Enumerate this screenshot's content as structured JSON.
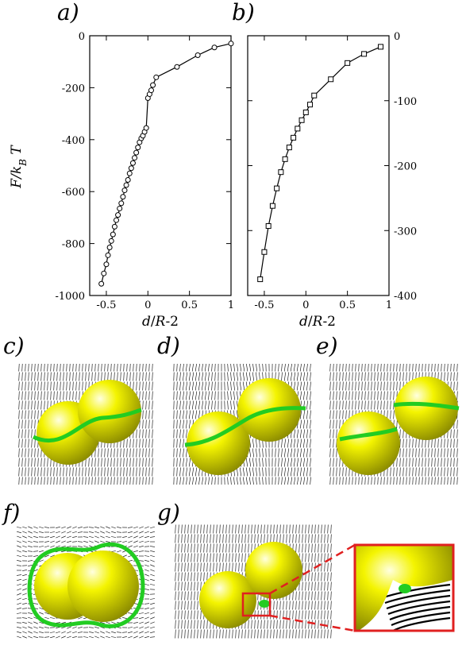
{
  "panels": {
    "a": "a)",
    "b": "b)",
    "c": "c)",
    "d": "d)",
    "e": "e)",
    "f": "f)",
    "g": "g)"
  },
  "chart_data": [
    {
      "type": "line",
      "marker": "circle",
      "ylabel": "F/k_B T",
      "xlabel": "d/R-2",
      "xlim": [
        -0.7,
        1.0
      ],
      "ylim": [
        -1000,
        0
      ],
      "xticks": [
        "-0.5",
        "0",
        "0.5",
        "1"
      ],
      "yticks": [
        "0",
        "-200",
        "-400",
        "-600",
        "-800",
        "-1000"
      ],
      "x": [
        -0.56,
        -0.53,
        -0.5,
        -0.48,
        -0.46,
        -0.44,
        -0.42,
        -0.4,
        -0.38,
        -0.36,
        -0.34,
        -0.32,
        -0.3,
        -0.28,
        -0.26,
        -0.24,
        -0.22,
        -0.2,
        -0.18,
        -0.16,
        -0.14,
        -0.12,
        -0.1,
        -0.08,
        -0.06,
        -0.04,
        -0.02,
        0.0,
        0.02,
        0.04,
        0.06,
        0.1,
        0.35,
        0.6,
        0.8,
        1.0
      ],
      "y": [
        -955,
        -915,
        -880,
        -845,
        -815,
        -790,
        -765,
        -735,
        -710,
        -690,
        -665,
        -645,
        -620,
        -595,
        -575,
        -555,
        -530,
        -510,
        -490,
        -470,
        -450,
        -430,
        -410,
        -395,
        -385,
        -370,
        -355,
        -240,
        -225,
        -210,
        -190,
        -160,
        -120,
        -75,
        -45,
        -30
      ]
    },
    {
      "type": "line",
      "marker": "square",
      "xlabel": "d/R-2",
      "xlim": [
        -0.7,
        1.0
      ],
      "ylim": [
        -400,
        0
      ],
      "xticks": [
        "-0.5",
        "0",
        "0.5",
        "1"
      ],
      "yticks": [
        "0",
        "-100",
        "-200",
        "-300",
        "-400"
      ],
      "x": [
        -0.55,
        -0.5,
        -0.45,
        -0.4,
        -0.35,
        -0.3,
        -0.25,
        -0.2,
        -0.15,
        -0.1,
        -0.05,
        0.0,
        0.05,
        0.1,
        0.3,
        0.5,
        0.7,
        0.9
      ],
      "y": [
        -375,
        -333,
        -293,
        -262,
        -235,
        -210,
        -190,
        -172,
        -157,
        -143,
        -130,
        -118,
        -106,
        -92,
        -67,
        -42,
        -28,
        -17
      ]
    }
  ],
  "colors": {
    "sphere": "#f4f400",
    "ring": "#22cc22",
    "zoom_box": "#e02020",
    "line": "#000000"
  }
}
